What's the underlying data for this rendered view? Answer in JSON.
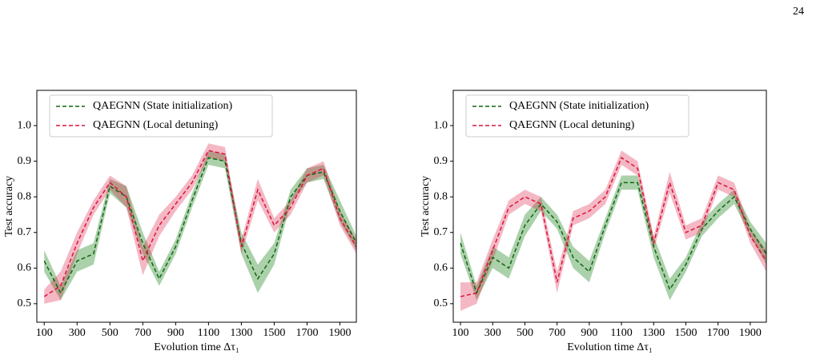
{
  "page_number": "24",
  "chart_data": [
    {
      "type": "line",
      "xlabel": "Evolution time Δτ₁",
      "ylabel": "Test accuracy",
      "x": [
        100,
        200,
        300,
        400,
        500,
        600,
        700,
        800,
        900,
        1000,
        1100,
        1200,
        1300,
        1400,
        1500,
        1600,
        1700,
        1800,
        1900,
        2000
      ],
      "series": [
        {
          "name": "QAEGNN (State initialization)",
          "color": "#2e8b2e",
          "values": [
            0.62,
            0.53,
            0.62,
            0.64,
            0.83,
            0.8,
            0.67,
            0.57,
            0.66,
            0.79,
            0.91,
            0.9,
            0.67,
            0.57,
            0.64,
            0.8,
            0.86,
            0.87,
            0.76,
            0.67
          ],
          "errors": [
            0.03,
            0.02,
            0.03,
            0.03,
            0.02,
            0.03,
            0.03,
            0.02,
            0.02,
            0.02,
            0.02,
            0.02,
            0.03,
            0.04,
            0.03,
            0.02,
            0.02,
            0.02,
            0.03,
            0.02
          ]
        },
        {
          "name": "QAEGNN (Local detuning)",
          "color": "#dc143c",
          "values": [
            0.52,
            0.55,
            0.67,
            0.77,
            0.84,
            0.8,
            0.62,
            0.72,
            0.78,
            0.84,
            0.93,
            0.92,
            0.66,
            0.82,
            0.72,
            0.77,
            0.86,
            0.88,
            0.74,
            0.66
          ],
          "errors": [
            0.02,
            0.04,
            0.03,
            0.02,
            0.02,
            0.03,
            0.04,
            0.03,
            0.02,
            0.02,
            0.02,
            0.02,
            0.02,
            0.03,
            0.02,
            0.02,
            0.02,
            0.02,
            0.02,
            0.02
          ]
        }
      ],
      "xlim": [
        55,
        2000
      ],
      "ylim": [
        0.448,
        1.099
      ],
      "xticks": [
        100,
        300,
        500,
        700,
        900,
        1100,
        1300,
        1500,
        1700,
        1900
      ],
      "yticks": [
        0.5,
        0.6,
        0.7,
        0.8,
        0.9,
        {
          "value": 1,
          "label": "1.0"
        }
      ],
      "legend": "upper left"
    },
    {
      "type": "line",
      "xlabel": "Evolution time Δτ₁",
      "ylabel": "Test accuracy",
      "x": [
        100,
        200,
        300,
        400,
        500,
        600,
        700,
        800,
        900,
        1000,
        1100,
        1200,
        1300,
        1400,
        1500,
        1600,
        1700,
        1800,
        1900,
        2000
      ],
      "series": [
        {
          "name": "QAEGNN (State initialization)",
          "color": "#2e8b2e",
          "values": [
            0.67,
            0.53,
            0.63,
            0.6,
            0.72,
            0.78,
            0.73,
            0.63,
            0.59,
            0.72,
            0.84,
            0.84,
            0.66,
            0.54,
            0.61,
            0.71,
            0.76,
            0.8,
            0.71,
            0.64
          ],
          "errors": [
            0.03,
            0.02,
            0.03,
            0.03,
            0.03,
            0.02,
            0.02,
            0.03,
            0.03,
            0.02,
            0.02,
            0.02,
            0.03,
            0.03,
            0.02,
            0.02,
            0.02,
            0.02,
            0.02,
            0.03
          ]
        },
        {
          "name": "QAEGNN (Local detuning)",
          "color": "#dc143c",
          "values": [
            0.52,
            0.53,
            0.65,
            0.77,
            0.8,
            0.78,
            0.56,
            0.74,
            0.76,
            0.8,
            0.91,
            0.88,
            0.67,
            0.84,
            0.7,
            0.72,
            0.84,
            0.82,
            0.69,
            0.62
          ],
          "errors": [
            0.04,
            0.03,
            0.03,
            0.02,
            0.02,
            0.02,
            0.03,
            0.02,
            0.02,
            0.02,
            0.02,
            0.02,
            0.02,
            0.03,
            0.02,
            0.02,
            0.02,
            0.02,
            0.02,
            0.03
          ]
        }
      ],
      "xlim": [
        55,
        2000
      ],
      "ylim": [
        0.448,
        1.099
      ],
      "xticks": [
        100,
        300,
        500,
        700,
        900,
        1100,
        1300,
        1500,
        1700,
        1900
      ],
      "yticks": [
        0.5,
        0.6,
        0.7,
        0.8,
        0.9,
        {
          "value": 1,
          "label": "1.0"
        }
      ],
      "legend": "upper left"
    }
  ]
}
